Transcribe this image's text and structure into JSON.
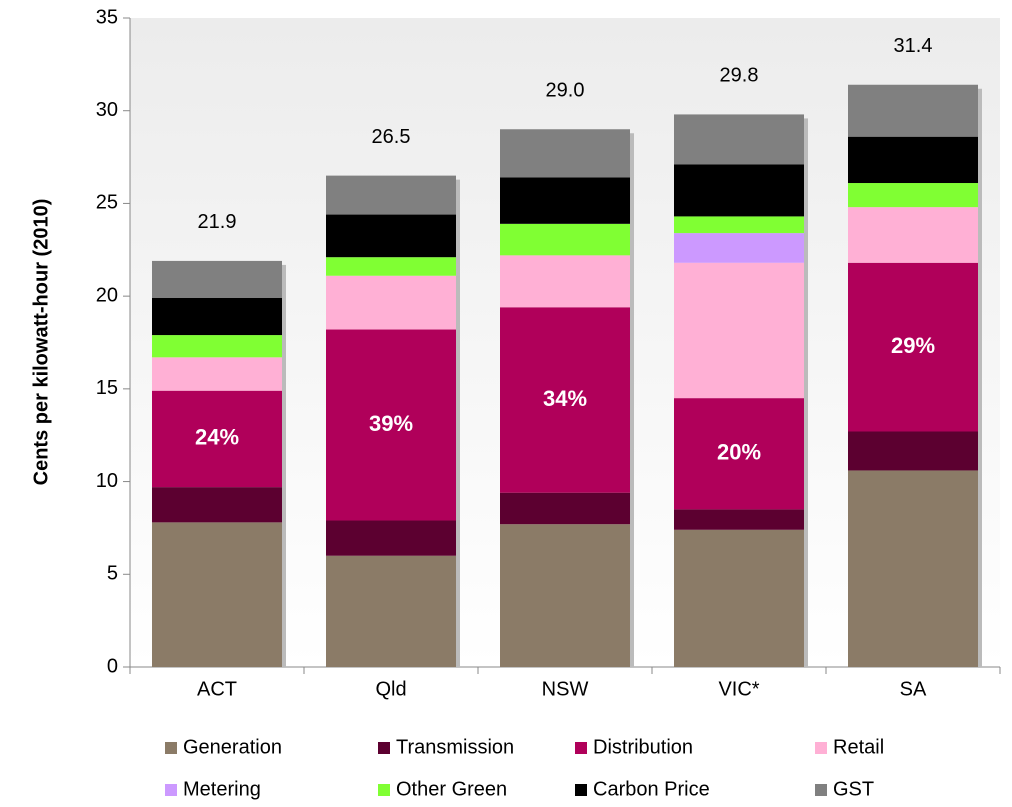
{
  "chart_data": {
    "type": "stacked_bar",
    "ylabel": "Cents per kilowatt-hour (2010)",
    "categories": [
      "ACT",
      "Qld",
      "NSW",
      "VIC*",
      "SA"
    ],
    "series": [
      {
        "name": "Generation",
        "color": "#8b7b67",
        "values": [
          7.8,
          6.0,
          7.7,
          7.4,
          10.6
        ]
      },
      {
        "name": "Transmission",
        "color": "#5c0030",
        "values": [
          1.9,
          1.9,
          1.7,
          1.1,
          2.1
        ]
      },
      {
        "name": "Distribution",
        "color": "#b0005a",
        "values": [
          5.2,
          10.3,
          10.0,
          6.0,
          9.1
        ],
        "share_labels": [
          "24%",
          "39%",
          "34%",
          "20%",
          "29%"
        ]
      },
      {
        "name": "Retail",
        "color": "#ffb0d5",
        "values": [
          1.8,
          2.9,
          2.8,
          7.3,
          3.0
        ]
      },
      {
        "name": "Metering",
        "color": "#cc99ff",
        "values": [
          0,
          0,
          0,
          1.6,
          0
        ]
      },
      {
        "name": "Other Green",
        "color": "#80ff33",
        "values": [
          1.2,
          1.0,
          1.7,
          0.9,
          1.3
        ]
      },
      {
        "name": "Carbon Price",
        "color": "#000000",
        "values": [
          2.0,
          2.3,
          2.5,
          2.8,
          2.5
        ]
      },
      {
        "name": "GST",
        "color": "#808080",
        "values": [
          2.0,
          2.1,
          2.6,
          2.7,
          2.8
        ]
      }
    ],
    "totals": [
      {
        "value": 21.9,
        "label": "21.9"
      },
      {
        "value": 26.5,
        "label": "26.5"
      },
      {
        "value": 29.0,
        "label": "29.0"
      },
      {
        "value": 29.8,
        "label": "29.8"
      },
      {
        "value": 31.4,
        "label": "31.4"
      }
    ],
    "ylim": [
      0,
      35
    ],
    "yticks": [
      0,
      5,
      10,
      15,
      20,
      25,
      30,
      35
    ]
  }
}
